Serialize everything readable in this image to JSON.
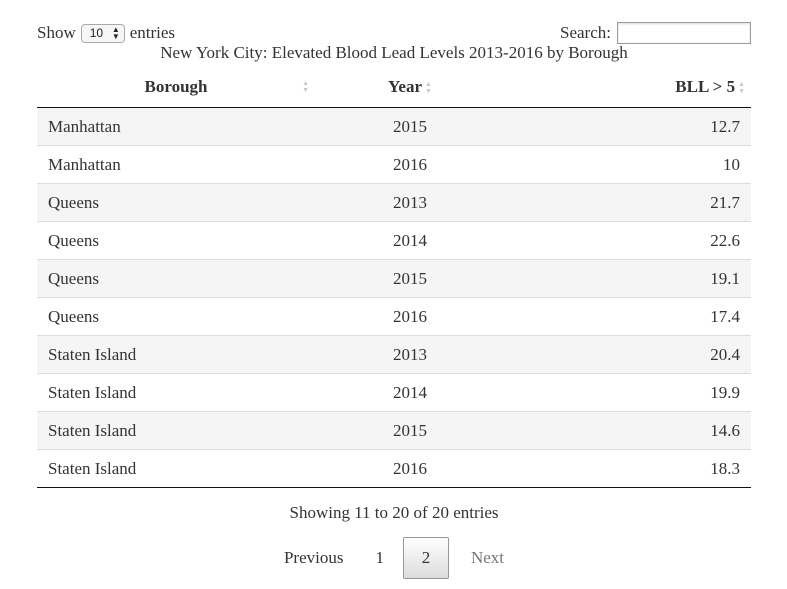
{
  "length": {
    "label_before": "Show",
    "selected": "10",
    "label_after": "entries"
  },
  "search": {
    "label": "Search:",
    "value": ""
  },
  "caption": "New York City: Elevated Blood Lead Levels 2013-2016 by Borough",
  "columns": [
    "Borough",
    "Year",
    "BLL > 5"
  ],
  "rows": [
    [
      "Manhattan",
      "2015",
      "12.7"
    ],
    [
      "Manhattan",
      "2016",
      "10"
    ],
    [
      "Queens",
      "2013",
      "21.7"
    ],
    [
      "Queens",
      "2014",
      "22.6"
    ],
    [
      "Queens",
      "2015",
      "19.1"
    ],
    [
      "Queens",
      "2016",
      "17.4"
    ],
    [
      "Staten Island",
      "2013",
      "20.4"
    ],
    [
      "Staten Island",
      "2014",
      "19.9"
    ],
    [
      "Staten Island",
      "2015",
      "14.6"
    ],
    [
      "Staten Island",
      "2016",
      "18.3"
    ]
  ],
  "info": "Showing 11 to 20 of 20 entries",
  "pagination": {
    "previous": "Previous",
    "pages": [
      "1",
      "2"
    ],
    "current": "2",
    "next": "Next"
  }
}
